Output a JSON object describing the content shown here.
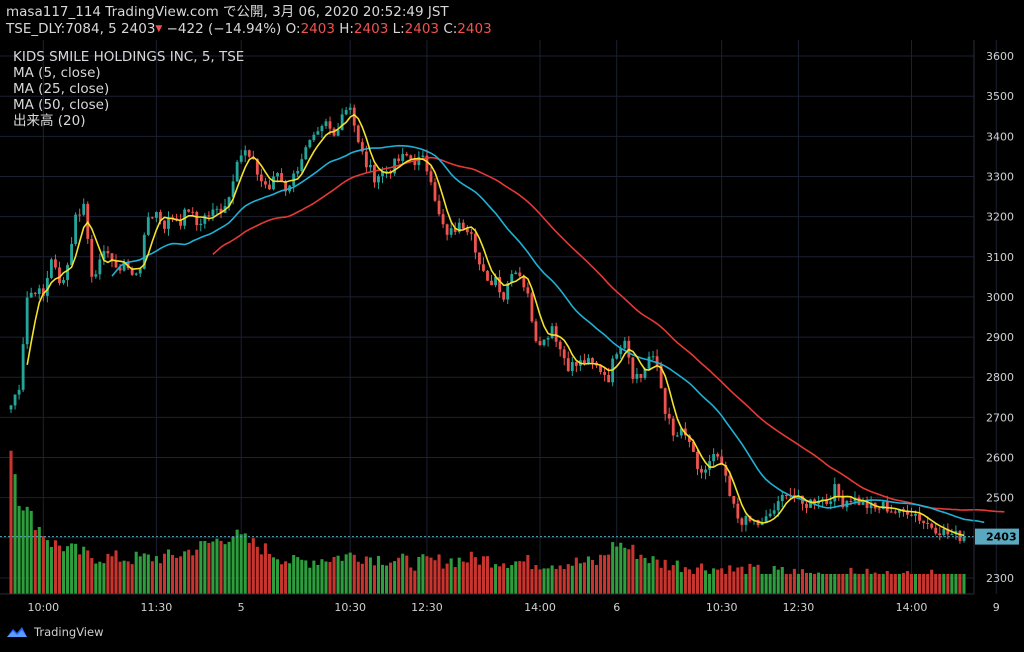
{
  "header": {
    "line1": "masa117_114 TradingView.com で公開, 3月 06, 2020 20:52:49 JST",
    "symbol": "TSE_DLY:7084, 5",
    "price": "2403",
    "arrow": "▼",
    "change": "−422 (−14.94%)",
    "o_label": "O:",
    "o_value": "2403",
    "h_label": "H:",
    "h_value": "2403",
    "l_label": "L:",
    "l_value": "2403",
    "c_label": "C:",
    "c_value": "2403"
  },
  "legend": {
    "title": "KIDS SMILE HOLDINGS INC, 5, TSE",
    "ma5": "MA (5, close)",
    "ma25": "MA (25, close)",
    "ma50": "MA (50, close)",
    "volume": "出来高 (20)"
  },
  "footer": {
    "brand": "TradingView"
  },
  "colors": {
    "up": "#26a69a",
    "down": "#ef5350",
    "vol_up": "#2e9d3e",
    "vol_down": "#c8352f",
    "ma5": "#f2e22c",
    "ma25": "#1fb0d6",
    "ma50": "#e53935",
    "grid": "#1c2030",
    "axis_text": "#d0d0d0",
    "last_price_bg": "#5aa9c0"
  },
  "chart_data": {
    "type": "candlestick",
    "ylim": [
      2260,
      3640
    ],
    "y_ticks": [
      2300,
      2400,
      2500,
      2600,
      2700,
      2800,
      2900,
      3000,
      3100,
      3200,
      3300,
      3400,
      3500,
      3600
    ],
    "x_ticks": [
      {
        "label": "10:00",
        "index": 8
      },
      {
        "label": "11:30",
        "index": 36
      },
      {
        "label": "5",
        "index": 57
      },
      {
        "label": "10:30",
        "index": 84
      },
      {
        "label": "12:30",
        "index": 103
      },
      {
        "label": "14:00",
        "index": 131
      },
      {
        "label": "6",
        "index": 150
      },
      {
        "label": "10:30",
        "index": 176
      },
      {
        "label": "12:30",
        "index": 195
      },
      {
        "label": "14:00",
        "index": 223
      },
      {
        "label": "9",
        "index": 244
      }
    ],
    "last_price": 2403,
    "anchors": [
      [
        0,
        2730
      ],
      [
        2,
        2780
      ],
      [
        4,
        3000
      ],
      [
        6,
        3020
      ],
      [
        8,
        3000
      ],
      [
        10,
        3100
      ],
      [
        12,
        3030
      ],
      [
        14,
        3080
      ],
      [
        16,
        3200
      ],
      [
        18,
        3230
      ],
      [
        20,
        3060
      ],
      [
        22,
        3080
      ],
      [
        24,
        3120
      ],
      [
        26,
        3060
      ],
      [
        28,
        3090
      ],
      [
        30,
        3050
      ],
      [
        32,
        3080
      ],
      [
        34,
        3200
      ],
      [
        36,
        3210
      ],
      [
        38,
        3180
      ],
      [
        40,
        3200
      ],
      [
        42,
        3190
      ],
      [
        44,
        3220
      ],
      [
        46,
        3180
      ],
      [
        48,
        3200
      ],
      [
        50,
        3210
      ],
      [
        52,
        3220
      ],
      [
        54,
        3250
      ],
      [
        56,
        3350
      ],
      [
        58,
        3360
      ],
      [
        60,
        3330
      ],
      [
        62,
        3290
      ],
      [
        64,
        3270
      ],
      [
        66,
        3310
      ],
      [
        68,
        3270
      ],
      [
        70,
        3300
      ],
      [
        72,
        3350
      ],
      [
        74,
        3380
      ],
      [
        76,
        3400
      ],
      [
        78,
        3430
      ],
      [
        80,
        3400
      ],
      [
        82,
        3460
      ],
      [
        84,
        3480
      ],
      [
        86,
        3380
      ],
      [
        88,
        3330
      ],
      [
        90,
        3300
      ],
      [
        92,
        3310
      ],
      [
        94,
        3320
      ],
      [
        96,
        3340
      ],
      [
        98,
        3350
      ],
      [
        100,
        3340
      ],
      [
        102,
        3340
      ],
      [
        104,
        3300
      ],
      [
        106,
        3200
      ],
      [
        108,
        3150
      ],
      [
        110,
        3170
      ],
      [
        112,
        3180
      ],
      [
        114,
        3170
      ],
      [
        116,
        3080
      ],
      [
        118,
        3030
      ],
      [
        120,
        3050
      ],
      [
        122,
        3000
      ],
      [
        124,
        3070
      ],
      [
        126,
        3060
      ],
      [
        128,
        3000
      ],
      [
        130,
        2900
      ],
      [
        132,
        2890
      ],
      [
        134,
        2930
      ],
      [
        136,
        2870
      ],
      [
        138,
        2830
      ],
      [
        140,
        2830
      ],
      [
        142,
        2840
      ],
      [
        144,
        2830
      ],
      [
        146,
        2820
      ],
      [
        148,
        2800
      ],
      [
        150,
        2870
      ],
      [
        152,
        2900
      ],
      [
        154,
        2810
      ],
      [
        156,
        2800
      ],
      [
        158,
        2850
      ],
      [
        160,
        2830
      ],
      [
        162,
        2720
      ],
      [
        164,
        2650
      ],
      [
        166,
        2660
      ],
      [
        168,
        2640
      ],
      [
        170,
        2560
      ],
      [
        172,
        2570
      ],
      [
        174,
        2600
      ],
      [
        176,
        2580
      ],
      [
        178,
        2500
      ],
      [
        180,
        2450
      ],
      [
        182,
        2440
      ],
      [
        184,
        2440
      ],
      [
        186,
        2430
      ],
      [
        188,
        2460
      ],
      [
        190,
        2480
      ],
      [
        192,
        2520
      ],
      [
        194,
        2500
      ],
      [
        196,
        2480
      ],
      [
        198,
        2490
      ],
      [
        200,
        2500
      ],
      [
        202,
        2490
      ],
      [
        204,
        2520
      ],
      [
        206,
        2490
      ],
      [
        208,
        2500
      ],
      [
        210,
        2490
      ],
      [
        212,
        2480
      ],
      [
        214,
        2470
      ],
      [
        216,
        2480
      ],
      [
        218,
        2470
      ],
      [
        220,
        2460
      ],
      [
        222,
        2470
      ],
      [
        224,
        2460
      ],
      [
        226,
        2440
      ],
      [
        228,
        2430
      ],
      [
        230,
        2420
      ],
      [
        232,
        2410
      ],
      [
        234,
        2405
      ],
      [
        236,
        2403
      ]
    ],
    "volume_anchors": [
      [
        0,
        2620
      ],
      [
        2,
        2490
      ],
      [
        4,
        2460
      ],
      [
        6,
        2430
      ],
      [
        10,
        2380
      ],
      [
        20,
        2345
      ],
      [
        30,
        2340
      ],
      [
        40,
        2345
      ],
      [
        55,
        2400
      ],
      [
        70,
        2330
      ],
      [
        85,
        2350
      ],
      [
        100,
        2330
      ],
      [
        115,
        2340
      ],
      [
        130,
        2330
      ],
      [
        145,
        2330
      ],
      [
        150,
        2380
      ],
      [
        160,
        2330
      ],
      [
        180,
        2310
      ],
      [
        200,
        2300
      ],
      [
        220,
        2295
      ],
      [
        236,
        2290
      ]
    ],
    "ma_ranges": {
      "ma5": [
        4,
        236
      ],
      "ma25": [
        25,
        241
      ],
      "ma50": [
        50,
        246
      ]
    }
  }
}
